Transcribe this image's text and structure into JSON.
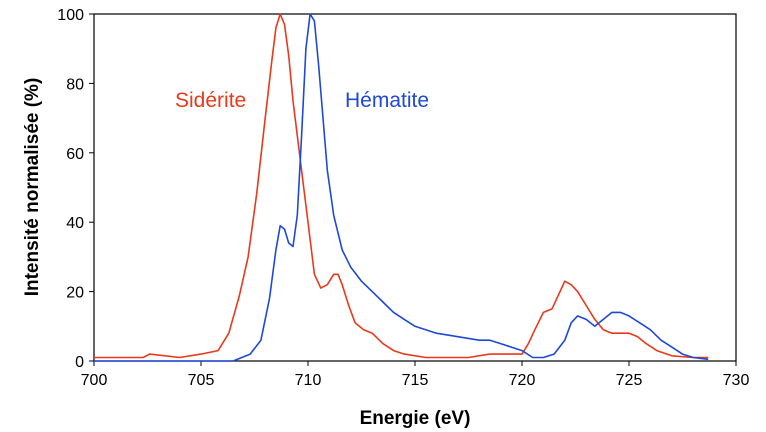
{
  "chart_data": {
    "type": "line",
    "title": "",
    "xlabel": "Energie (eV)",
    "ylabel": "Intensité normalisée (%)",
    "xlim": [
      700,
      730
    ],
    "ylim": [
      0,
      100
    ],
    "xticks": [
      700,
      705,
      710,
      715,
      720,
      725,
      730
    ],
    "yticks": [
      0,
      20,
      40,
      60,
      80,
      100
    ],
    "grid": false,
    "legend": "inline labels",
    "series": [
      {
        "name": "Sidérite",
        "color": "#e8391d",
        "x": [
          700,
          702.3,
          702.6,
          704,
          705,
          705.8,
          706.3,
          706.8,
          707.2,
          707.6,
          708.0,
          708.3,
          708.5,
          708.7,
          708.9,
          709.1,
          709.3,
          709.6,
          710.0,
          710.3,
          710.6,
          710.9,
          711.2,
          711.4,
          711.6,
          711.9,
          712.2,
          712.6,
          713.0,
          713.5,
          714.0,
          714.5,
          715.5,
          716.5,
          717.5,
          718.5,
          719.5,
          720.0,
          720.3,
          720.6,
          721.0,
          721.4,
          721.7,
          722.0,
          722.3,
          722.6,
          723.0,
          723.4,
          723.8,
          724.2,
          724.6,
          725.0,
          725.4,
          725.8,
          726.3,
          727.0,
          728.0,
          728.7
        ],
        "values": [
          1,
          1,
          2,
          1,
          2,
          3,
          8,
          19,
          30,
          48,
          70,
          86,
          96,
          100,
          97,
          88,
          75,
          60,
          40,
          25,
          21,
          22,
          25,
          25,
          22,
          16,
          11,
          9,
          8,
          5,
          3,
          2,
          1,
          1,
          1,
          2,
          2,
          2,
          5,
          9,
          14,
          15,
          19,
          23,
          22,
          20,
          16,
          12,
          9,
          8,
          8,
          8,
          7,
          5,
          3,
          1.5,
          1,
          1
        ]
      },
      {
        "name": "Hématite",
        "color": "#1e49d8",
        "x": [
          700,
          704,
          706.5,
          707.3,
          707.8,
          708.2,
          708.5,
          708.7,
          708.9,
          709.1,
          709.3,
          709.5,
          709.7,
          709.9,
          710.1,
          710.3,
          710.5,
          710.7,
          710.9,
          711.2,
          711.6,
          712.0,
          712.5,
          713.0,
          713.5,
          714.0,
          714.5,
          715.0,
          715.5,
          716.0,
          717.0,
          718.0,
          718.5,
          719.0,
          719.5,
          720.0,
          720.5,
          721.0,
          721.5,
          722.0,
          722.3,
          722.6,
          723.0,
          723.4,
          723.8,
          724.2,
          724.6,
          725.0,
          725.5,
          726.0,
          726.5,
          727.0,
          727.5,
          728.0,
          728.7
        ],
        "values": [
          0,
          0,
          0,
          2,
          6,
          18,
          32,
          39,
          38,
          34,
          33,
          42,
          65,
          90,
          100,
          98,
          85,
          70,
          55,
          42,
          32,
          27,
          23,
          20,
          17,
          14,
          12,
          10,
          9,
          8,
          7,
          6,
          6,
          5,
          4,
          3,
          1,
          1,
          2,
          6,
          11,
          13,
          12,
          10,
          12,
          14,
          14,
          13,
          11,
          9,
          6,
          4,
          2,
          1,
          0.5
        ]
      }
    ],
    "annotations": [
      {
        "text": "Sidérite",
        "color": "#e8391d"
      },
      {
        "text": "Hématite",
        "color": "#1e49d8"
      }
    ]
  }
}
